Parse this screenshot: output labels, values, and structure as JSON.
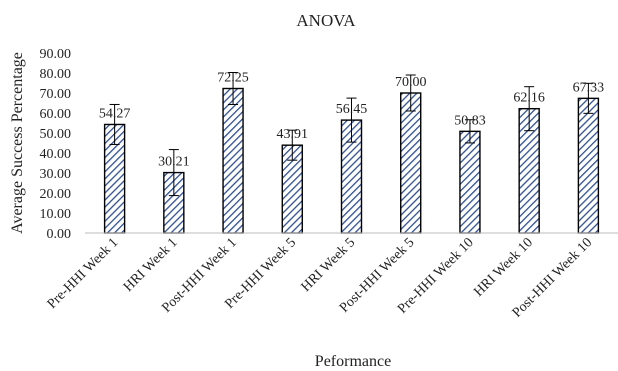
{
  "chart_data": {
    "type": "bar",
    "title": "ANOVA",
    "xlabel": "Peformance",
    "ylabel": "Average Success Percentage",
    "ylim": [
      0,
      90
    ],
    "y_ticks": [
      "0.00",
      "10.00",
      "20.00",
      "30.00",
      "40.00",
      "50.00",
      "60.00",
      "70.00",
      "80.00",
      "90.00"
    ],
    "grid": false,
    "legend": "none",
    "bar_fill": "#2f4f8f",
    "categories": [
      "Pre-HHI Week 1",
      "HRI Week 1",
      "Post-HHI Week 1",
      "Pre-HHI Week 5",
      "HRI Week 5",
      "Post-HHI Week 5",
      "Pre-HHI Week 10",
      "HRI Week 10",
      "Post-HHI Week 10"
    ],
    "values": [
      54.27,
      30.21,
      72.25,
      43.91,
      56.45,
      70.0,
      50.83,
      62.16,
      67.33
    ],
    "value_labels": [
      "54.27",
      "30.21",
      "72.25",
      "43.91",
      "56.45",
      "70.00",
      "50.83",
      "62.16",
      "67.33"
    ],
    "error": [
      10.0,
      11.5,
      8.0,
      7.5,
      11.0,
      9.0,
      5.8,
      11.0,
      7.5
    ]
  }
}
